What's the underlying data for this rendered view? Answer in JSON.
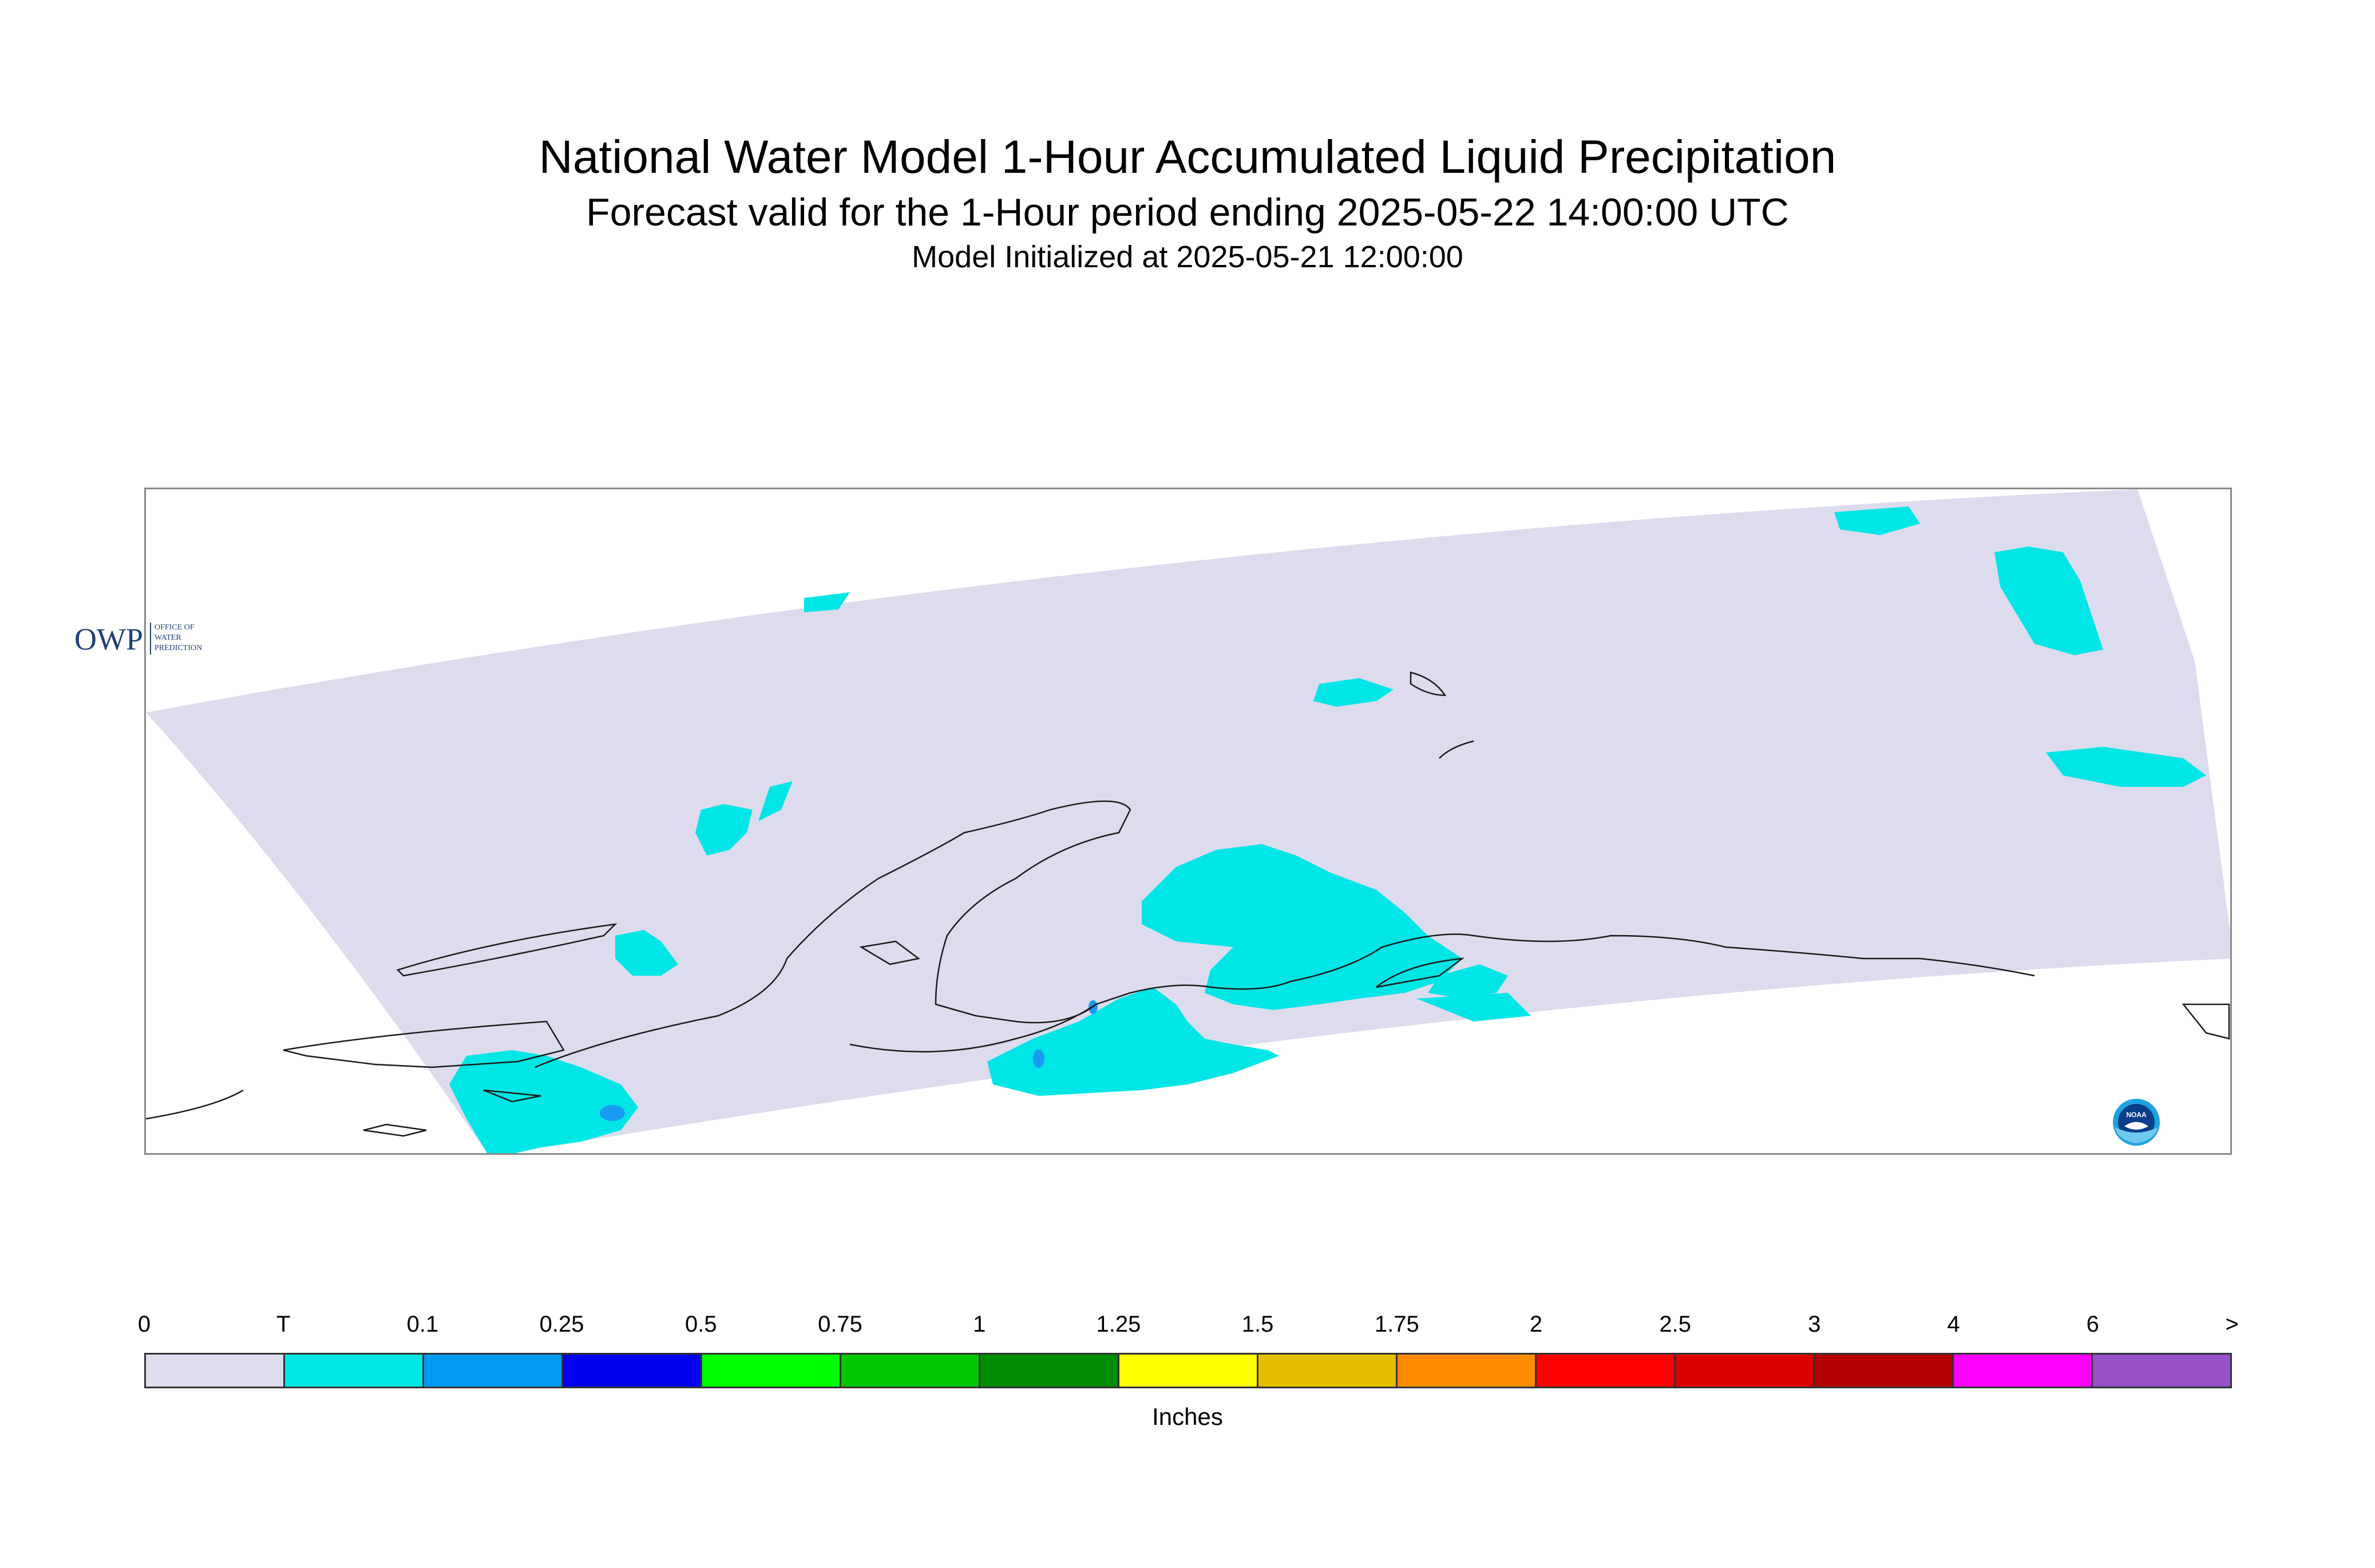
{
  "title": "National Water Model 1-Hour Accumulated Liquid Precipitation",
  "subtitle": "Forecast valid for the 1-Hour period ending 2025-05-22 14:00:00 UTC",
  "init_line": "Model Initialized at 2025-05-21 12:00:00",
  "map": {
    "domain_color": "#dcdcee",
    "coastline_color": "#1a1a1a",
    "precip_colors": {
      "trace": "#00e5e5",
      "light": "#1a9af0"
    }
  },
  "logos": {
    "owp_text": "OWP",
    "owp_sub": [
      "OFFICE OF",
      "WATER",
      "PREDICTION"
    ],
    "noaa_text": "NOAA"
  },
  "legend": {
    "ticks": [
      "0",
      "T",
      "0.1",
      "0.25",
      "0.5",
      "0.75",
      "1",
      "1.25",
      "1.5",
      "1.75",
      "2",
      "2.5",
      "3",
      "4",
      "6",
      ">"
    ],
    "colors": [
      "#dcdcee",
      "#00e5e5",
      "#009af0",
      "#0000f0",
      "#00ff00",
      "#00c800",
      "#008c00",
      "#ffff00",
      "#e6be00",
      "#ff8c00",
      "#ff0000",
      "#dc0000",
      "#b40000",
      "#ff00ff",
      "#9650c8"
    ],
    "units": "Inches"
  }
}
